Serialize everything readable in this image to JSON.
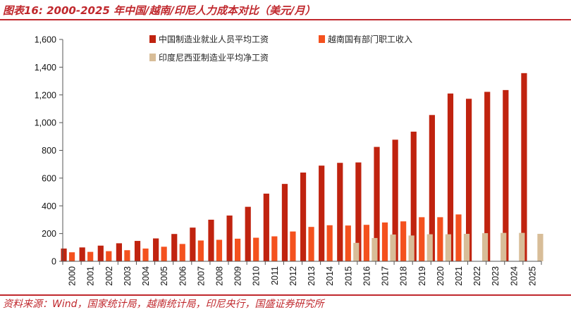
{
  "header": {
    "title": "图表16:  2000-2025 年中国/越南/印尼人力成本对比（美元/月）"
  },
  "footer": {
    "source": "资料来源：Wind，国家统计局，越南统计局，印尼央行，国盛证券研究所"
  },
  "chart_data": {
    "type": "bar",
    "title": "",
    "xlabel": "",
    "ylabel": "",
    "ylim": [
      0,
      1600
    ],
    "yticks": [
      0,
      200,
      400,
      600,
      800,
      1000,
      1200,
      1400,
      1600
    ],
    "ytick_labels": [
      "0",
      "200",
      "400",
      "600",
      "800",
      "1,000",
      "1,200",
      "1,400",
      "1,600"
    ],
    "grid": false,
    "legend_position": "top-center",
    "categories": [
      "2000",
      "2001",
      "2002",
      "2003",
      "2004",
      "2005",
      "2006",
      "2007",
      "2008",
      "2009",
      "2010",
      "2011",
      "2012",
      "2013",
      "2014",
      "2015",
      "2016",
      "2017",
      "2018",
      "2019",
      "2020",
      "2021",
      "2022",
      "2023",
      "2024",
      "2025"
    ],
    "series": [
      {
        "name": "中国制造业就业人员平均工资",
        "color": "#c0230f",
        "values": [
          92,
          100,
          113,
          130,
          147,
          165,
          197,
          243,
          300,
          330,
          393,
          488,
          558,
          640,
          690,
          710,
          713,
          825,
          877,
          935,
          1055,
          1210,
          1172,
          1222,
          1235,
          1357
        ]
      },
      {
        "name": "越南国有部门职工收入",
        "color": "#f4511e",
        "values": [
          65,
          68,
          73,
          80,
          92,
          105,
          125,
          150,
          155,
          163,
          170,
          180,
          215,
          248,
          260,
          258,
          263,
          280,
          288,
          318,
          318,
          338,
          null,
          null,
          null,
          null
        ]
      },
      {
        "name": "印度尼西亚制造业平均净工资",
        "color": "#d8bd98",
        "values": [
          null,
          null,
          null,
          null,
          null,
          null,
          null,
          null,
          null,
          null,
          null,
          null,
          null,
          null,
          null,
          133,
          168,
          193,
          186,
          195,
          195,
          198,
          203,
          205,
          205,
          198
        ]
      }
    ]
  }
}
